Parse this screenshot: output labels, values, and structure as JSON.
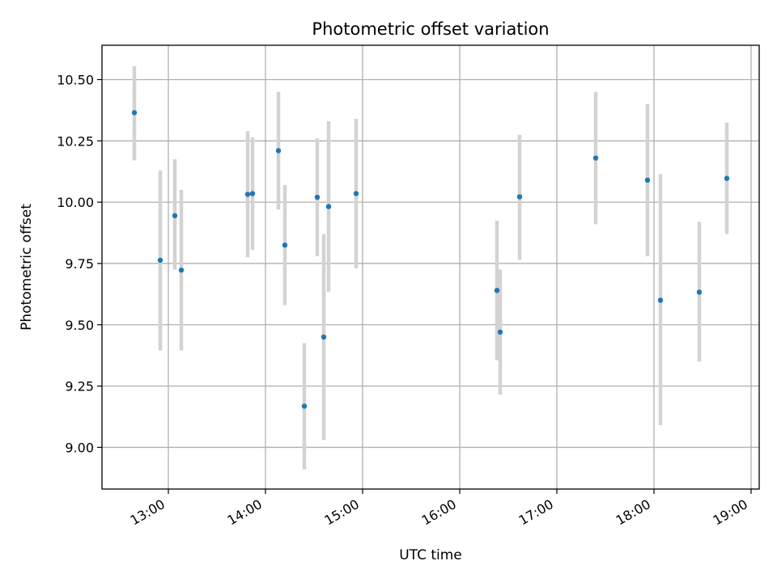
{
  "chart_data": {
    "type": "scatter",
    "title": "Photometric offset variation",
    "xlabel": "UTC time",
    "ylabel": "Photometric offset",
    "xlim": [
      "12:19",
      "19:05"
    ],
    "ylim": [
      8.83,
      10.64
    ],
    "x_ticks": [
      "13:00",
      "14:00",
      "15:00",
      "16:00",
      "17:00",
      "18:00",
      "19:00"
    ],
    "y_ticks": [
      9.0,
      9.25,
      9.5,
      9.75,
      10.0,
      10.25,
      10.5
    ],
    "y_tick_labels": [
      "9.00",
      "9.25",
      "9.50",
      "9.75",
      "10.00",
      "10.25",
      "10.50"
    ],
    "grid": true,
    "colors": {
      "point": "#1f77b4",
      "errorbar": "#d3d3d3",
      "grid": "#b0b0b0"
    },
    "series": [
      {
        "points": [
          {
            "x": "12:39",
            "y": 10.365,
            "lo": 10.17,
            "hi": 10.555
          },
          {
            "x": "12:55",
            "y": 9.763,
            "lo": 9.395,
            "hi": 10.13
          },
          {
            "x": "13:04",
            "y": 9.945,
            "lo": 9.725,
            "hi": 10.175
          },
          {
            "x": "13:08",
            "y": 9.723,
            "lo": 9.395,
            "hi": 10.05
          },
          {
            "x": "13:49",
            "y": 10.032,
            "lo": 9.775,
            "hi": 10.29
          },
          {
            "x": "13:52",
            "y": 10.035,
            "lo": 9.805,
            "hi": 10.265
          },
          {
            "x": "14:08",
            "y": 10.21,
            "lo": 9.97,
            "hi": 10.45
          },
          {
            "x": "14:12",
            "y": 9.825,
            "lo": 9.58,
            "hi": 10.07
          },
          {
            "x": "14:24",
            "y": 9.168,
            "lo": 8.91,
            "hi": 9.425
          },
          {
            "x": "14:32",
            "y": 10.02,
            "lo": 9.78,
            "hi": 10.26
          },
          {
            "x": "14:36",
            "y": 9.45,
            "lo": 9.03,
            "hi": 9.87
          },
          {
            "x": "14:39",
            "y": 9.982,
            "lo": 9.635,
            "hi": 10.33
          },
          {
            "x": "14:56",
            "y": 10.035,
            "lo": 9.73,
            "hi": 10.34
          },
          {
            "x": "16:23",
            "y": 9.64,
            "lo": 9.355,
            "hi": 9.925
          },
          {
            "x": "16:25",
            "y": 9.47,
            "lo": 9.215,
            "hi": 9.725
          },
          {
            "x": "16:37",
            "y": 10.022,
            "lo": 9.765,
            "hi": 10.275
          },
          {
            "x": "17:24",
            "y": 10.18,
            "lo": 9.91,
            "hi": 10.45
          },
          {
            "x": "17:56",
            "y": 10.09,
            "lo": 9.78,
            "hi": 10.4
          },
          {
            "x": "18:04",
            "y": 9.6,
            "lo": 9.09,
            "hi": 10.115
          },
          {
            "x": "18:28",
            "y": 9.633,
            "lo": 9.35,
            "hi": 9.92
          },
          {
            "x": "18:45",
            "y": 10.097,
            "lo": 9.87,
            "hi": 10.325
          }
        ]
      }
    ]
  }
}
